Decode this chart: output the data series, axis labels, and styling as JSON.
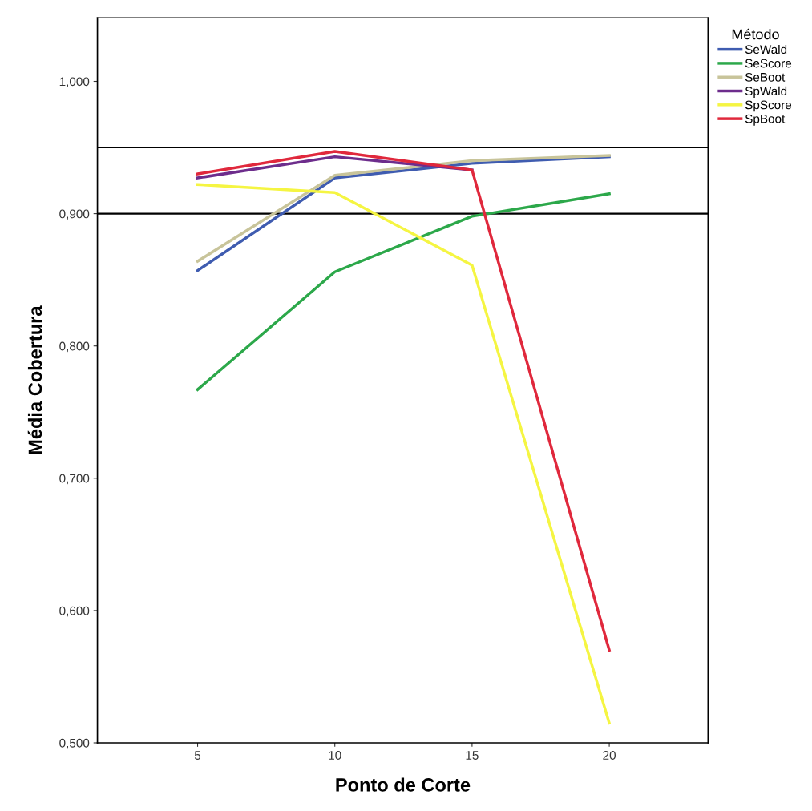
{
  "chart_data": {
    "type": "line",
    "xlabel": "Ponto de Corte",
    "ylabel": "Média Cobertura",
    "legend_title": "Método",
    "legend": "top right",
    "x": [
      5,
      10,
      15,
      20
    ],
    "xlim": [
      1.35,
      23.6
    ],
    "xticks": [
      5,
      10,
      15,
      20
    ],
    "ylim": [
      0.5,
      1.048
    ],
    "yticks": [
      {
        "value": 0.5,
        "label": "0,500"
      },
      {
        "value": 0.6,
        "label": "0,600"
      },
      {
        "value": 0.7,
        "label": "0,700"
      },
      {
        "value": 0.8,
        "label": "0,800"
      },
      {
        "value": 0.9,
        "label": "0,900"
      },
      {
        "value": 1.0,
        "label": "1,000"
      }
    ],
    "grid": false,
    "marker": "none",
    "line_style": "solid",
    "ref_lines": [
      {
        "axis": "y",
        "value": 0.95,
        "color": "#000000"
      },
      {
        "axis": "y",
        "value": 0.9,
        "color": "#000000"
      }
    ],
    "series": [
      {
        "name": "SeWald",
        "color": "#3f5cb0",
        "values": [
          0.857,
          0.927,
          0.938,
          0.943
        ]
      },
      {
        "name": "SeScore",
        "color": "#2ca84a",
        "values": [
          0.767,
          0.856,
          0.898,
          0.915
        ]
      },
      {
        "name": "SeBoot",
        "color": "#c8c49a",
        "values": [
          0.864,
          0.929,
          0.94,
          0.944
        ]
      },
      {
        "name": "SpWald",
        "color": "#6d2d8c",
        "values": [
          0.927,
          0.943,
          0.933,
          null
        ]
      },
      {
        "name": "SpScore",
        "color": "#f5f542",
        "values": [
          0.922,
          0.916,
          0.861,
          0.515
        ]
      },
      {
        "name": "SpBoot",
        "color": "#e0283c",
        "values": [
          0.93,
          0.947,
          0.933,
          0.57
        ]
      }
    ]
  }
}
